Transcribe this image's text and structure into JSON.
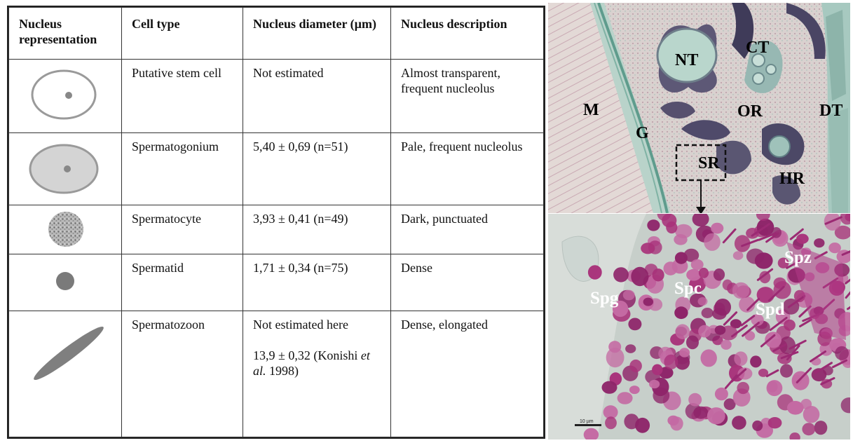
{
  "table": {
    "headers": [
      "Nucleus representation",
      "Cell type",
      "Nucleus diameter (µm)",
      "Nucleus description"
    ],
    "rows": [
      {
        "icon": "open-oval-with-nucleolus-icon",
        "cell_type": "Putative stem cell",
        "diameter": "Not estimated",
        "description": "Almost transparent, frequent nucleolus"
      },
      {
        "icon": "filled-oval-with-nucleolus-icon",
        "cell_type": "Spermatogonium",
        "diameter": "5,40 ± 0,69 (n=51)",
        "description": "Pale, frequent nucleolus"
      },
      {
        "icon": "textured-circle-icon",
        "cell_type": "Spermatocyte",
        "diameter": "3,93 ± 0,41 (n=49)",
        "description": "Dark, punctuated"
      },
      {
        "icon": "small-dark-circle-icon",
        "cell_type": "Spermatid",
        "diameter": "1,71 ± 0,34 (n=75)",
        "description": "Dense"
      },
      {
        "icon": "elongated-ellipse-icon",
        "cell_type": "Spermatozoon",
        "diameter_line1": "Not estimated here",
        "diameter_line2": "13,9 ± 0,32 (Konishi",
        "diameter_italic": "et al.",
        "diameter_line3": "1998)",
        "description": "Dense, elongated"
      }
    ]
  },
  "top_image": {
    "labels": {
      "nt": "NT",
      "ct": "CT",
      "m": "M",
      "or": "OR",
      "dt": "DT",
      "g": "G",
      "sr": "SR",
      "hr": "HR"
    }
  },
  "bottom_image": {
    "labels": {
      "spz": "Spz",
      "spg": "Spg",
      "spc": "Spc",
      "spd": "Spd"
    },
    "scale_bar": "10 µm"
  },
  "colors": {
    "tissue_teal": "#8fb9ad",
    "cell_magenta": "#a8327a",
    "icon_gray": "#9a9a9a"
  }
}
